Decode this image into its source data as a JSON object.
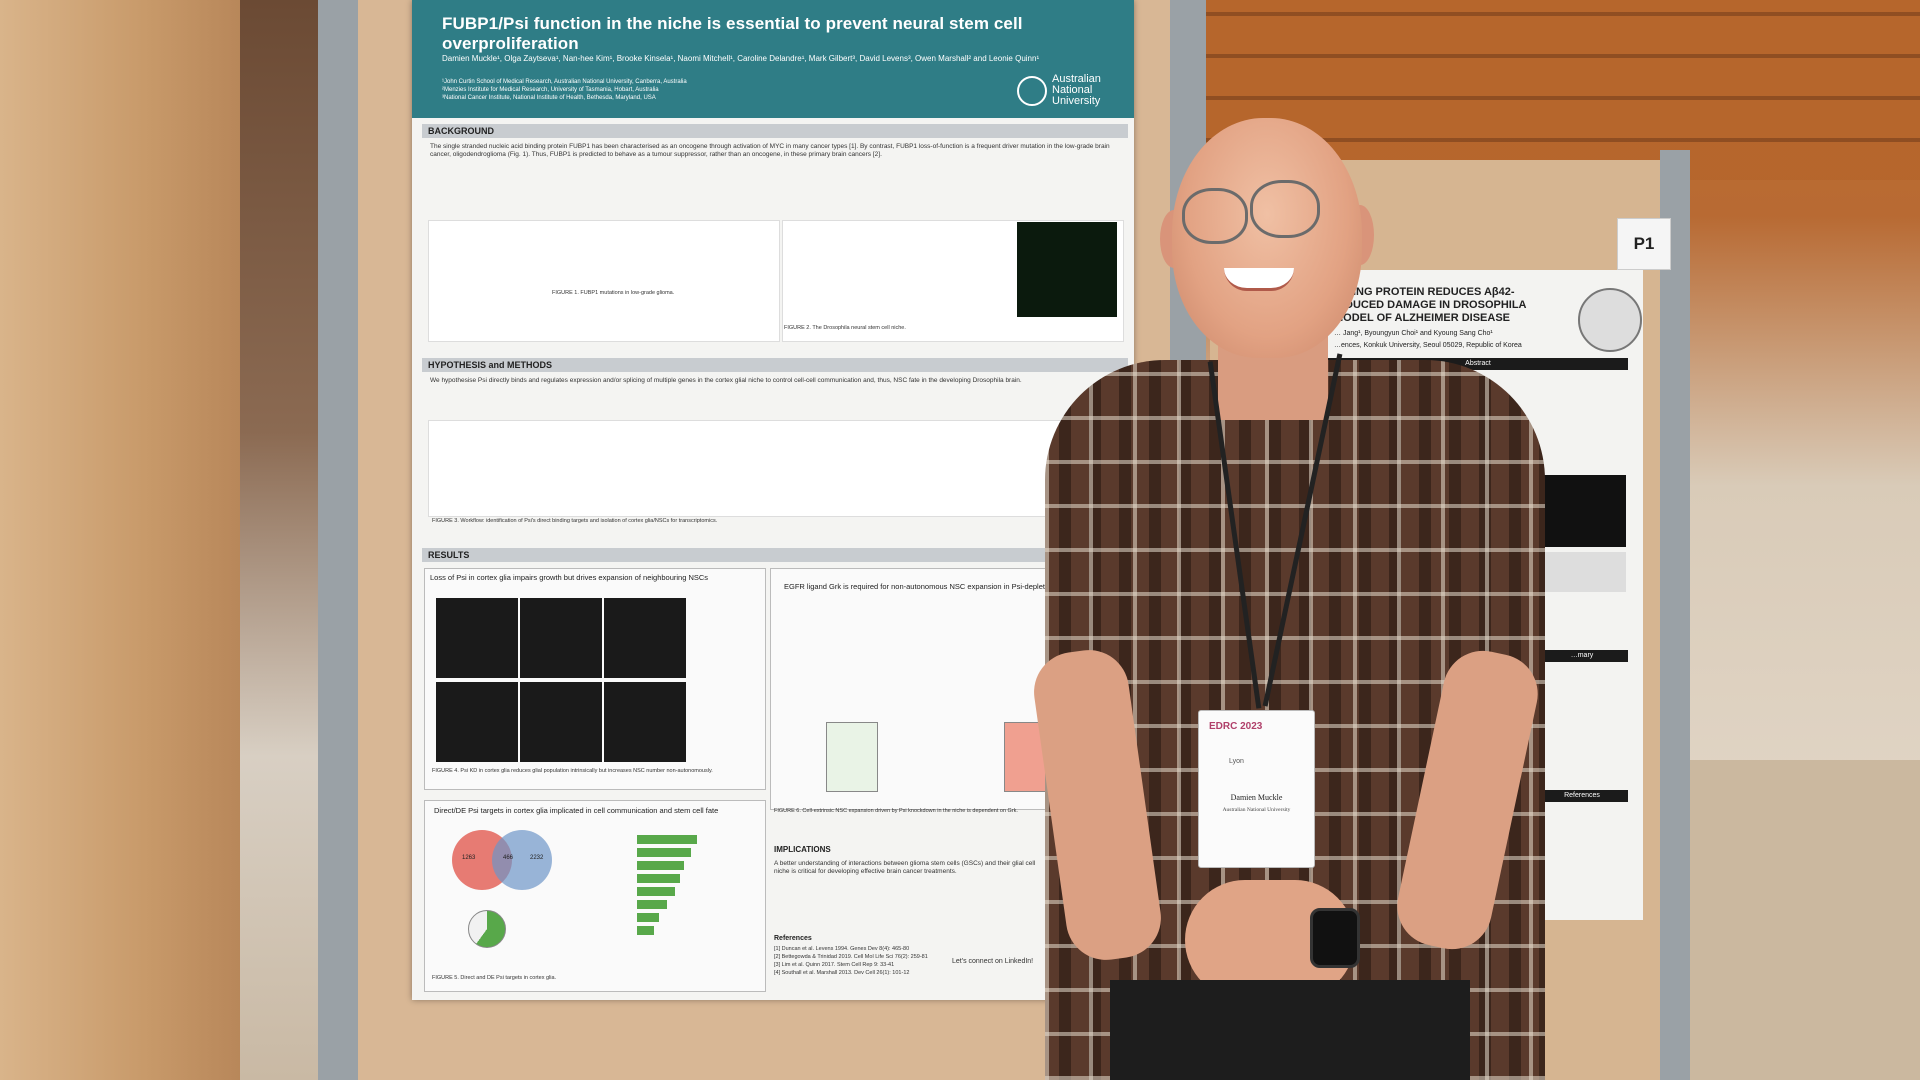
{
  "poster": {
    "title": "FUBP1/Psi function in the niche is essential to prevent neural stem cell overproliferation",
    "authors": "Damien Muckle¹, Olga Zaytseva¹, Nan-hee Kim¹, Brooke Kinsela¹, Naomi Mitchell¹, Caroline Delandre¹, Mark Gilbert³, David Levens³, Owen Marshall² and Leonie Quinn¹",
    "affiliations": [
      "¹John Curtin School of Medical Research, Australian National University, Canberra, Australia",
      "²Menzies Institute for Medical Research, University of Tasmania, Hobart, Australia",
      "³National Cancer Institute, National Institute of Health, Bethesda, Maryland, USA"
    ],
    "institution": [
      "Australian",
      "National",
      "University"
    ],
    "sections": {
      "background": "BACKGROUND",
      "hypothesis": "HYPOTHESIS and METHODS",
      "results": "RESULTS",
      "implications": "IMPLICATIONS",
      "references": "References"
    },
    "background_text": "The single stranded nucleic acid binding protein FUBP1 has been characterised as an oncogene through activation of MYC in many cancer types [1]. By contrast, FUBP1 loss-of-function is a frequent driver mutation in the low-grade brain cancer, oligodendroglioma (Fig. 1). Thus, FUBP1 is predicted to behave as a tumour suppressor, rather than an oncogene, in these primary brain cancers [2].",
    "fig1_caption": "FIGURE 1. FUBP1 mutations in low-grade glioma.",
    "fig2_caption": "FIGURE 2. The Drosophila neural stem cell niche.",
    "hypothesis_text": "We hypothesise Psi directly binds and regulates expression and/or splicing of multiple genes in the cortex glial niche to control cell-cell communication and, thus, NSC fate in the developing Drosophila brain.",
    "fig3_caption": "FIGURE 3. Workflow: identification of Psi's direct binding targets and isolation of cortex glia/NSCs for transcriptomics.",
    "results_a": "Loss of Psi in cortex glia impairs growth but drives expansion of neighbouring NSCs",
    "results_b": "EGFR ligand Grk is required for non-autonomous NSC expansion in Psi-depleted",
    "results_c": "Direct/DE Psi targets in cortex glia implicated in cell communication and stem cell fate",
    "fig4_caption": "FIGURE 4. Psi KD in cortex glia reduces glial population intrinsically but increases NSC number non-autonomously.",
    "fig5_caption": "FIGURE 5. Direct and DE Psi targets in cortex glia.",
    "fig6_caption": "FIGURE 6. Cell-extrinsic NSC expansion driven by Psi knockdown in the niche is dependent on Grk.",
    "implications_text": "A better understanding of interactions between glioma stem cells (GSCs) and their glial cell niche is critical for developing effective brain cancer treatments.",
    "venn_values": [
      "1263",
      "466",
      "2232"
    ],
    "references_list": [
      "[1] Duncan et al. Levens 1994. Genes Dev 8(4): 465-80",
      "[2] Bettegowda & Trinidad 2019. Cell Mol Life Sci 76(2): 259-81",
      "[3] Lim et al. Quinn 2017. Stem Cell Rep 9: 33-41",
      "[4] Southall et al. Marshall 2013. Dev Cell 26(1): 101-12"
    ],
    "linkedin": "Let's connect on LinkedIn!"
  },
  "poster2": {
    "title": "…DING PROTEIN REDUCES Aβ42-INDUCED DAMAGE IN DROSOPHILA MODEL OF ALZHEIMER DISEASE",
    "authors": "… Jang¹, Byoungyun Choi¹ and Kyoung Sang Cho¹",
    "affiliation": "…ences, Konkuk University, Seoul 05029, Republic of Korea",
    "abstract_label": "Abstract",
    "summary_label": "…mary",
    "references_label": "References"
  },
  "board_sign": "P1",
  "badge": {
    "conference": "EDRC 2023",
    "city": "Lyon",
    "name": "Damien Muckle",
    "institution": "Australian National University"
  }
}
